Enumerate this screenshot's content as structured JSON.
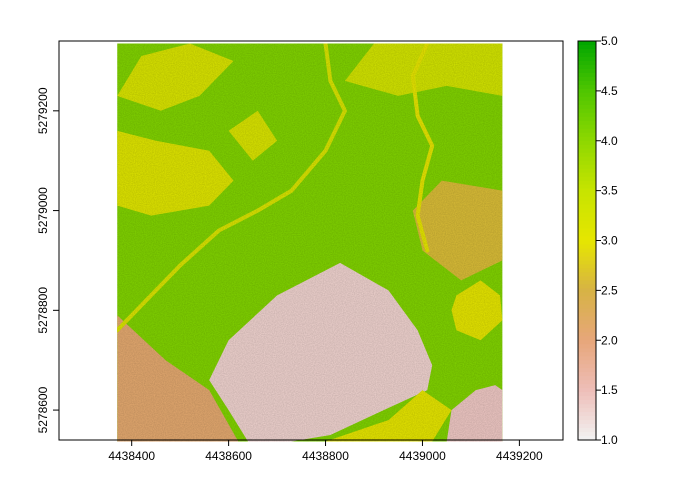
{
  "chart_data": {
    "type": "heatmap",
    "raster": {
      "x_extent": [
        4438370,
        4439165
      ],
      "y_extent": [
        5278537,
        5279335
      ],
      "value_range": [
        1.0,
        5.0
      ],
      "background_value": 4.1,
      "features": [
        {
          "kind": "bare_patch",
          "value": 1.3,
          "polygon": [
            [
              4438640,
              5278537
            ],
            [
              4438600,
              5278600
            ],
            [
              4438560,
              5278660
            ],
            [
              4438600,
              5278740
            ],
            [
              4438700,
              5278830
            ],
            [
              4438830,
              5278895
            ],
            [
              4438930,
              5278840
            ],
            [
              4438990,
              5278760
            ],
            [
              4439020,
              5278690
            ],
            [
              4439010,
              5278640
            ],
            [
              4438920,
              5278600
            ],
            [
              4438810,
              5278550
            ],
            [
              4438730,
              5278537
            ]
          ]
        },
        {
          "kind": "bare_patch",
          "value": 1.4,
          "polygon": [
            [
              4439050,
              5278537
            ],
            [
              4439060,
              5278600
            ],
            [
              4439110,
              5278640
            ],
            [
              4439150,
              5278650
            ],
            [
              4439165,
              5278640
            ],
            [
              4439165,
              5278537
            ]
          ]
        },
        {
          "kind": "low_sw",
          "value": 2.1,
          "polygon": [
            [
              4438370,
              5278537
            ],
            [
              4438370,
              5278790
            ],
            [
              4438470,
              5278700
            ],
            [
              4438560,
              5278640
            ],
            [
              4438620,
              5278537
            ]
          ]
        },
        {
          "kind": "yellow_field",
          "value": 3.1,
          "polygon": [
            [
              4438370,
              5279010
            ],
            [
              4438370,
              5279160
            ],
            [
              4438450,
              5279140
            ],
            [
              4438560,
              5279120
            ],
            [
              4438610,
              5279060
            ],
            [
              4438560,
              5279010
            ],
            [
              4438440,
              5278990
            ]
          ]
        },
        {
          "kind": "yellow_field",
          "value": 3.2,
          "polygon": [
            [
              4438370,
              5279230
            ],
            [
              4438420,
              5279310
            ],
            [
              4438520,
              5279335
            ],
            [
              4438610,
              5279300
            ],
            [
              4438540,
              5279230
            ],
            [
              4438460,
              5279200
            ]
          ]
        },
        {
          "kind": "yellow_field",
          "value": 3.0,
          "polygon": [
            [
              4438800,
              5278537
            ],
            [
              4438930,
              5278580
            ],
            [
              4439000,
              5278640
            ],
            [
              4439060,
              5278600
            ],
            [
              4439020,
              5278537
            ]
          ]
        },
        {
          "kind": "yellow_field",
          "value": 3.3,
          "polygon": [
            [
              4438840,
              5279260
            ],
            [
              4438900,
              5279335
            ],
            [
              4439165,
              5279335
            ],
            [
              4439165,
              5279230
            ],
            [
              4439050,
              5279250
            ],
            [
              4438950,
              5279230
            ]
          ]
        },
        {
          "kind": "circle_patch",
          "value": 3.0,
          "polygon": [
            [
              4439070,
              5278830
            ],
            [
              4439120,
              5278860
            ],
            [
              4439160,
              5278830
            ],
            [
              4439165,
              5278780
            ],
            [
              4439120,
              5278740
            ],
            [
              4439070,
              5278760
            ],
            [
              4439060,
              5278800
            ]
          ]
        },
        {
          "kind": "ne_mixed",
          "value": 2.6,
          "polygon": [
            [
              4438980,
              5279000
            ],
            [
              4439040,
              5279060
            ],
            [
              4439165,
              5279040
            ],
            [
              4439165,
              5278900
            ],
            [
              4439080,
              5278860
            ],
            [
              4439000,
              5278920
            ]
          ]
        },
        {
          "kind": "mid_strip",
          "value": 3.2,
          "polygon": [
            [
              4438600,
              5279160
            ],
            [
              4438660,
              5279200
            ],
            [
              4438700,
              5279140
            ],
            [
              4438650,
              5279100
            ]
          ]
        }
      ],
      "streams": [
        {
          "value": 3.2,
          "points": [
            [
              4438370,
              5278760
            ],
            [
              4438430,
              5278820
            ],
            [
              4438500,
              5278890
            ],
            [
              4438580,
              5278960
            ],
            [
              4438660,
              5279000
            ],
            [
              4438730,
              5279040
            ],
            [
              4438800,
              5279120
            ],
            [
              4438840,
              5279200
            ],
            [
              4438810,
              5279260
            ],
            [
              4438800,
              5279335
            ]
          ]
        },
        {
          "value": 3.0,
          "points": [
            [
              4439010,
              5279335
            ],
            [
              4438980,
              5279270
            ],
            [
              4438990,
              5279190
            ],
            [
              4439020,
              5279130
            ],
            [
              4439000,
              5279060
            ],
            [
              4438990,
              5278990
            ],
            [
              4439010,
              5278920
            ]
          ]
        }
      ]
    },
    "x_axis": {
      "range": [
        4438250,
        4439290
      ],
      "ticks": [
        4438400,
        4438600,
        4438800,
        4439000,
        4439200
      ],
      "tick_labels": [
        "4438400",
        "4438600",
        "4438800",
        "4439000",
        "4439200"
      ]
    },
    "y_axis": {
      "range": [
        5278540,
        5279340
      ],
      "ticks": [
        5278600,
        5278800,
        5279000,
        5279200
      ],
      "tick_labels": [
        "5278600",
        "5278800",
        "5279000",
        "5279200"
      ]
    },
    "legend": {
      "placement": "right",
      "ticks": [
        1.0,
        1.5,
        2.0,
        2.5,
        3.0,
        3.5,
        4.0,
        4.5,
        5.0
      ],
      "tick_labels": [
        "1.0",
        "1.5",
        "2.0",
        "2.5",
        "3.0",
        "3.5",
        "4.0",
        "4.5",
        "5.0"
      ]
    },
    "color_scale": [
      "#f2f2f2",
      "#eebeb8",
      "#e7a67a",
      "#d7b345",
      "#e6e600",
      "#c7e400",
      "#8ed800",
      "#4fc600",
      "#00a600"
    ],
    "grid": false
  }
}
